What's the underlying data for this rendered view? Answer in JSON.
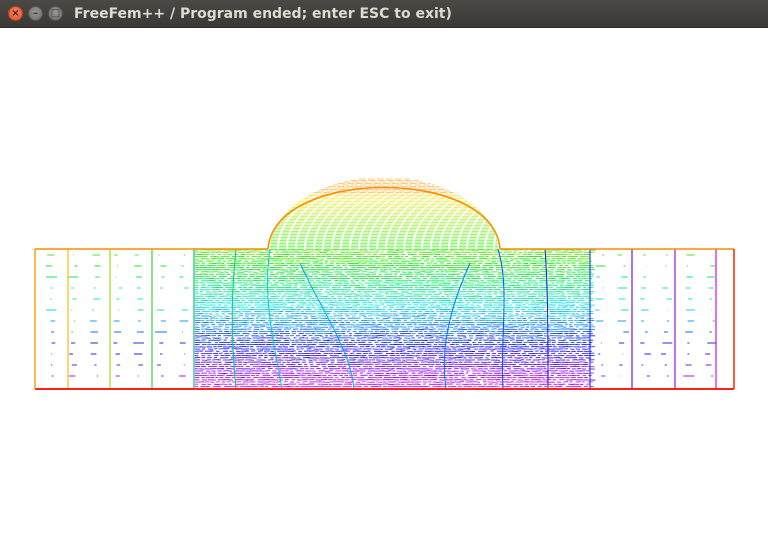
{
  "window": {
    "title": "FreeFem++ / Program ended; enter ESC to exit)",
    "controls": {
      "close_glyph": "×",
      "minimize_glyph": "–",
      "maximize_glyph": "□"
    }
  },
  "plot": {
    "type": "isolines",
    "colors": {
      "top_boundary": "#ff8c00",
      "bottom_boundary": "#ff0000",
      "left_boundary": "#ff9900",
      "right_boundary": "#ff3300"
    },
    "palette": [
      "#ff8c00",
      "#ffb000",
      "#d8d800",
      "#90e000",
      "#33cc33",
      "#00cc88",
      "#00cccc",
      "#0099ff",
      "#0033ff",
      "#6600cc",
      "#9900cc",
      "#cc00cc"
    ]
  }
}
